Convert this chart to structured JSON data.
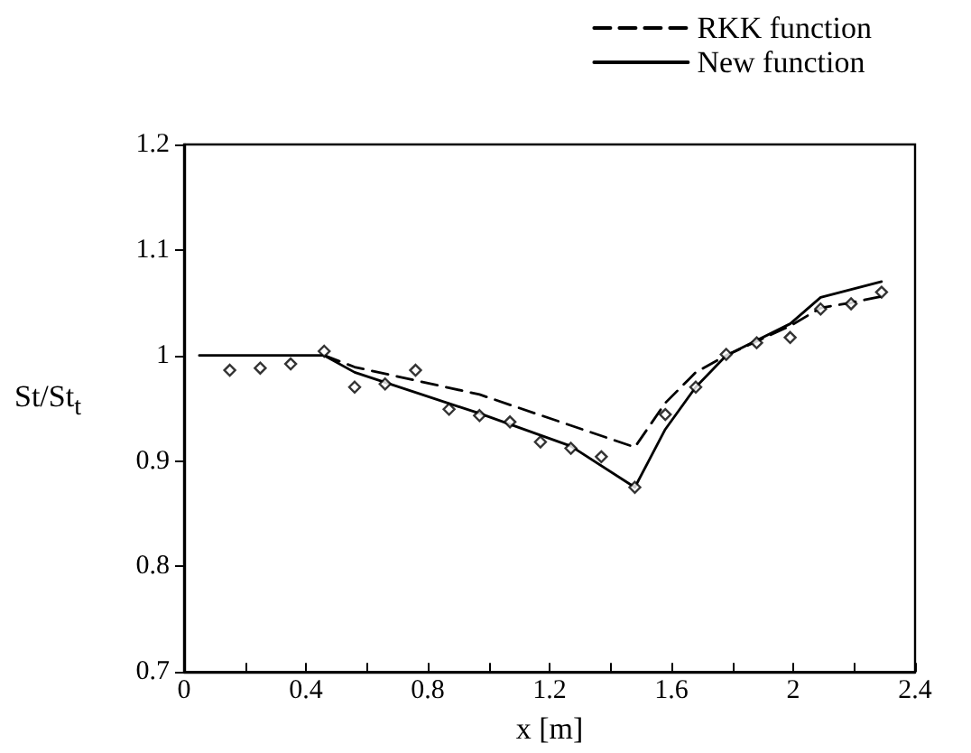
{
  "chart_data": {
    "type": "line",
    "xlabel": "x [m]",
    "ylabel": "St/St$_{t}$",
    "xlim": [
      0,
      2.4
    ],
    "ylim": [
      0.7,
      1.2
    ],
    "xticks": [
      0,
      {
        "value": 0.2,
        "label": null
      },
      0.4,
      {
        "value": 0.6,
        "label": null
      },
      0.8,
      {
        "value": 1.0,
        "label": null
      },
      1.2,
      {
        "value": 1.4,
        "label": null
      },
      1.6,
      {
        "value": 1.8,
        "label": null
      },
      2,
      {
        "value": 2.2,
        "label": null
      },
      2.4
    ],
    "yticks": [
      0.7,
      0.8,
      0.9,
      1,
      1.1,
      1.2
    ],
    "grid": false,
    "legend": "top right",
    "series": [
      {
        "name": "RKK function",
        "color": "#000000",
        "line_style": "dashed",
        "marker": "none",
        "x": [
          0.46,
          0.56,
          0.97,
          1.48,
          1.58,
          1.68,
          1.78,
          1.99,
          2.09,
          2.19,
          2.29
        ],
        "values": [
          1.0,
          0.989,
          0.963,
          0.913,
          0.955,
          0.984,
          1.0,
          1.028,
          1.045,
          1.05,
          1.056
        ]
      },
      {
        "name": "New function",
        "color": "#000000",
        "line_style": "solid",
        "marker": "none",
        "x": [
          0.05,
          0.46,
          0.56,
          0.97,
          1.27,
          1.48,
          1.58,
          1.68,
          1.78,
          1.99,
          2.09,
          2.29
        ],
        "values": [
          1.0,
          1.0,
          0.984,
          0.945,
          0.914,
          0.875,
          0.93,
          0.97,
          1.0,
          1.03,
          1.055,
          1.07
        ]
      },
      {
        "type": "scatter",
        "color": "#000000",
        "marker": "diamond",
        "x": [
          0.15,
          0.25,
          0.35,
          0.46,
          0.56,
          0.66,
          0.76,
          0.87,
          0.97,
          1.07,
          1.17,
          1.27,
          1.37,
          1.48,
          1.58,
          1.68,
          1.78,
          1.88,
          1.99,
          2.09,
          2.19,
          2.29
        ],
        "values": [
          0.986,
          0.988,
          0.992,
          1.004,
          0.97,
          0.973,
          0.986,
          0.949,
          0.943,
          0.937,
          0.918,
          0.912,
          0.904,
          0.875,
          0.944,
          0.97,
          1.001,
          1.012,
          1.017,
          1.044,
          1.049,
          1.06
        ]
      }
    ]
  }
}
